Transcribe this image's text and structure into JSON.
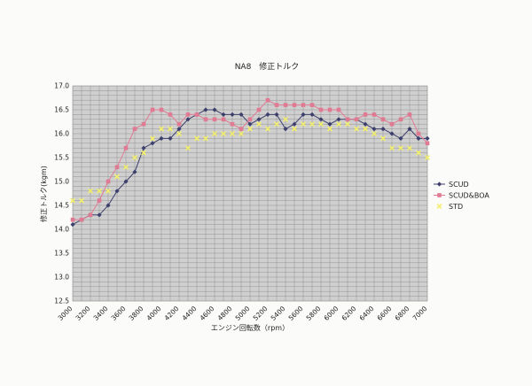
{
  "chart_data": {
    "type": "line",
    "title": "NA8　修正トルク",
    "xlabel": "エンジン回転数（rpm）",
    "ylabel": "修正トルク(kgm)",
    "x": [
      3000,
      3100,
      3200,
      3300,
      3400,
      3500,
      3600,
      3700,
      3800,
      3900,
      4000,
      4100,
      4200,
      4300,
      4400,
      4500,
      4600,
      4700,
      4800,
      4900,
      5000,
      5100,
      5200,
      5300,
      5400,
      5500,
      5600,
      5700,
      5800,
      5900,
      6000,
      6100,
      6200,
      6300,
      6400,
      6500,
      6600,
      6700,
      6800,
      6900,
      7000
    ],
    "x_tick_labels": [
      "3000",
      "3200",
      "3400",
      "3600",
      "3800",
      "4000",
      "4200",
      "4400",
      "4600",
      "4800",
      "5000",
      "5200",
      "5400",
      "5600",
      "5800",
      "6000",
      "6200",
      "6400",
      "6600",
      "6800",
      "7000"
    ],
    "xlim": [
      3000,
      7000
    ],
    "ylim": [
      12.5,
      17.0
    ],
    "y_tick_labels": [
      "12.5",
      "13.0",
      "13.5",
      "14.0",
      "14.5",
      "15.0",
      "15.5",
      "16.0",
      "16.5",
      "17.0"
    ],
    "grid": true,
    "legend_position": "right",
    "series": [
      {
        "name": "SCUD",
        "color": "#3c3f6b",
        "marker": "diamond",
        "values": [
          14.1,
          14.2,
          14.3,
          14.3,
          14.5,
          14.8,
          15.0,
          15.2,
          15.7,
          15.8,
          15.9,
          15.9,
          16.1,
          16.3,
          16.4,
          16.5,
          16.5,
          16.4,
          16.4,
          16.4,
          16.2,
          16.3,
          16.4,
          16.4,
          16.1,
          16.2,
          16.4,
          16.4,
          16.3,
          16.2,
          16.3,
          16.3,
          16.3,
          16.2,
          16.1,
          16.1,
          16.0,
          15.9,
          16.1,
          15.9,
          15.9
        ]
      },
      {
        "name": "SCUD&BOA",
        "color": "#e07a92",
        "marker": "square",
        "values": [
          14.2,
          14.2,
          14.3,
          14.6,
          15.0,
          15.3,
          15.7,
          16.1,
          16.2,
          16.5,
          16.5,
          16.4,
          16.2,
          16.4,
          16.4,
          16.3,
          16.3,
          16.3,
          16.2,
          16.1,
          16.3,
          16.5,
          16.7,
          16.6,
          16.6,
          16.6,
          16.6,
          16.6,
          16.5,
          16.5,
          16.5,
          16.3,
          16.3,
          16.4,
          16.4,
          16.3,
          16.2,
          16.3,
          16.4,
          16.0,
          15.8
        ]
      },
      {
        "name": "STD",
        "color": "#f3ef6e",
        "marker": "x",
        "values": [
          14.6,
          14.6,
          14.8,
          14.8,
          14.8,
          15.1,
          15.3,
          15.5,
          15.6,
          15.9,
          16.1,
          16.1,
          16.0,
          15.7,
          15.9,
          15.9,
          16.0,
          16.0,
          16.0,
          16.0,
          16.1,
          16.2,
          16.1,
          16.2,
          16.3,
          16.1,
          16.2,
          16.2,
          16.2,
          16.1,
          16.2,
          16.2,
          16.1,
          16.1,
          16.0,
          15.9,
          15.7,
          15.7,
          15.7,
          15.6,
          15.5
        ]
      }
    ]
  }
}
